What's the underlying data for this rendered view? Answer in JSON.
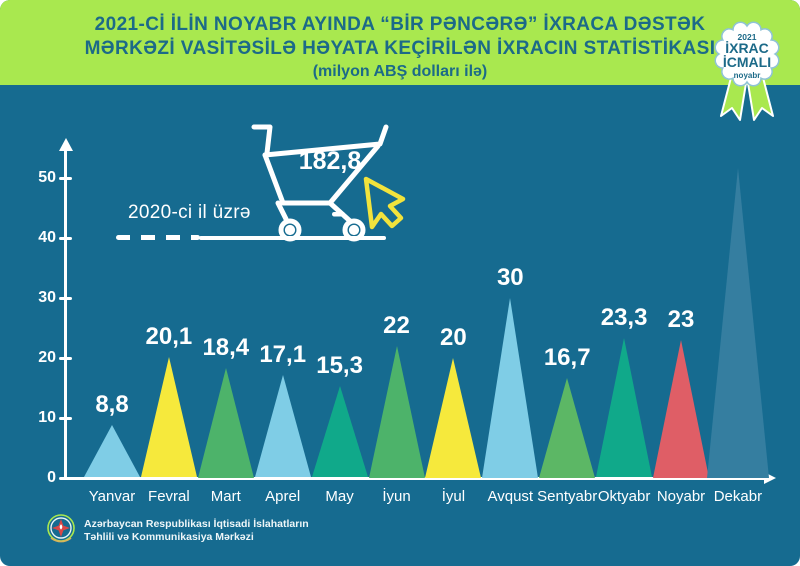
{
  "header": {
    "title_line1": "2021-Cİ İLİN NOYABR AYINDA “BİR PƏNCƏRƏ” İXRACA DƏSTƏK",
    "title_line2": "MƏRKƏZİ VASİTƏSİLƏ HƏYATA KEÇİRİLƏN İXRACIN STATİSTİKASI",
    "subtitle": "(milyon ABŞ dolları ilə)"
  },
  "badge": {
    "year": "2021",
    "line1": "İXRAC",
    "line2": "İCMALI",
    "month": "noyabr"
  },
  "annotation": {
    "cart_value": "182,8",
    "reference_label": "2020-ci il üzrə"
  },
  "chart_data": {
    "type": "bar",
    "style": "triangle-peaks",
    "title": "2021-ci ilin noyabr ayında “Bir Pəncərə” İxraca Dəstək Mərkəzi vasitəsilə həyata keçirilən ixracın statistikası",
    "unit": "milyon ABŞ dolları ilə",
    "categories": [
      "Yanvar",
      "Fevral",
      "Mart",
      "Aprel",
      "May",
      "İyun",
      "İyul",
      "Avqust",
      "Sentyabr",
      "Oktyabr",
      "Noyabr",
      "Dekabr"
    ],
    "values": [
      8.8,
      20.1,
      18.4,
      17.1,
      15.3,
      22,
      20,
      30,
      16.7,
      23.3,
      23,
      null
    ],
    "value_labels": [
      "8,8",
      "20,1",
      "18,4",
      "17,1",
      "15,3",
      "22",
      "20",
      "30",
      "16,7",
      "23,3",
      "23",
      ""
    ],
    "bar_colors": [
      "#7fcde6",
      "#f6e93c",
      "#4db36a",
      "#7fcde6",
      "#10a98a",
      "#4db36a",
      "#f6e93c",
      "#7fcde6",
      "#5cb765",
      "#10a98a",
      "#df5e66",
      "#357ea0"
    ],
    "bar_height_units": [
      8.8,
      20.1,
      18.4,
      17.1,
      15.3,
      22,
      20,
      30,
      16.7,
      23.3,
      23,
      51.7
    ],
    "yticks": [
      0,
      10,
      20,
      30,
      40,
      50
    ],
    "ylim": [
      0,
      55
    ],
    "grid": false,
    "legend": false,
    "reference_line": {
      "value": 40,
      "label": "2020-ci il üzrə"
    },
    "cart_annotation": {
      "value": "182,8"
    }
  },
  "footer": {
    "org_line1": "Azərbaycan Respublikası İqtisadi İslahatların",
    "org_line2": "Təhlili və Kommunikasiya Mərkəzi"
  },
  "colors": {
    "background": "#166b90",
    "header_background": "#a9e84f",
    "header_text": "#1c6a88",
    "axis_white": "#ffffff",
    "light_blue_bar": "#7fcde6",
    "yellow_bar": "#f6e93c",
    "green_bar": "#4db36a",
    "emerald_bar": "#10a98a",
    "red_bar": "#df5e66",
    "steel_bar": "#357ea0",
    "cursor_yellow": "#f2e33c"
  }
}
